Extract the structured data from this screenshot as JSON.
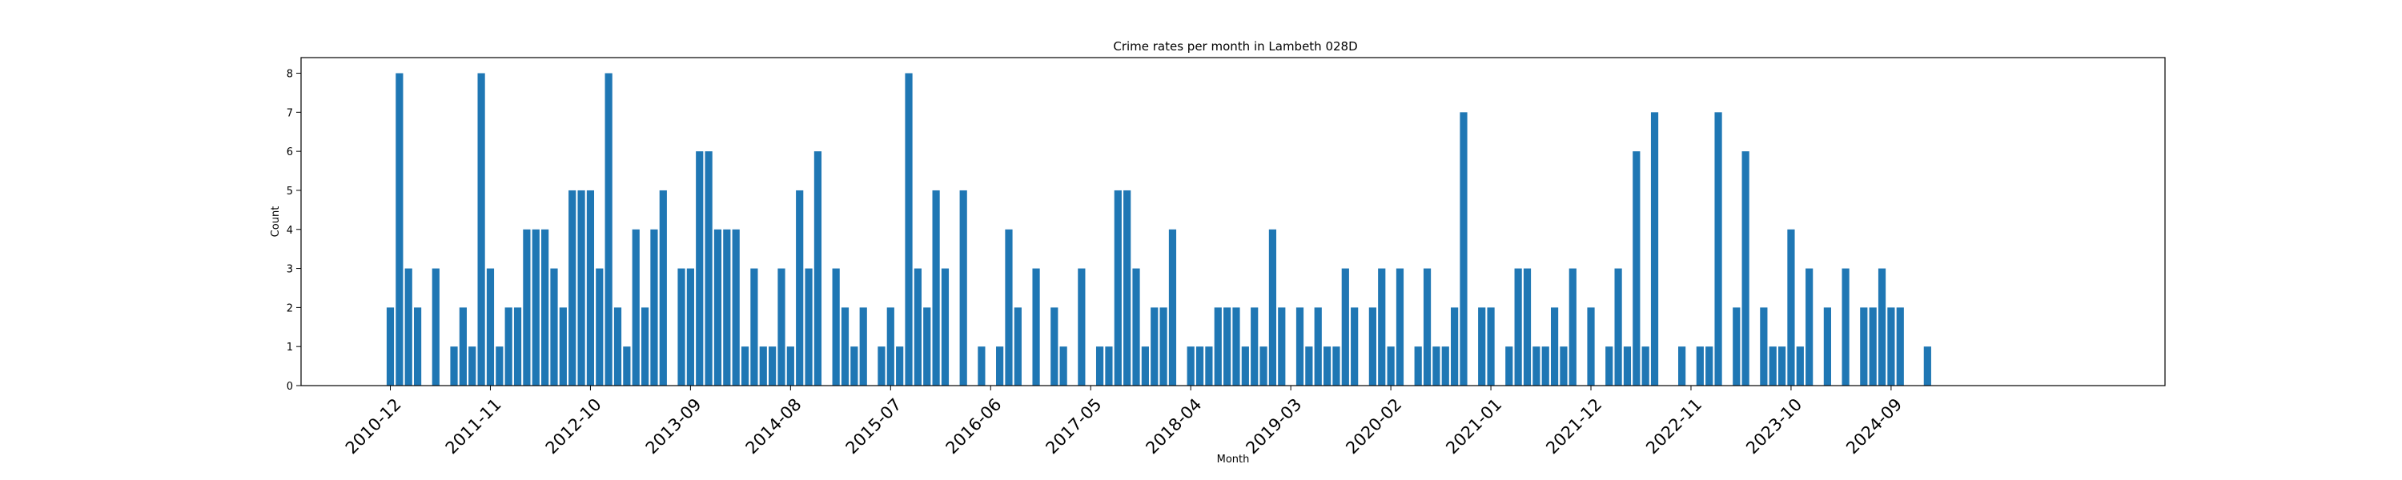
{
  "chart_data": {
    "type": "bar",
    "title": "Crime rates per month in Lambeth 028D",
    "xlabel": "Month",
    "ylabel": "Count",
    "ylim": [
      0,
      8.4
    ],
    "yticks": [
      0,
      1,
      2,
      3,
      4,
      5,
      6,
      7,
      8
    ],
    "bar_color": "#1f77b4",
    "grid": false,
    "start_month": "2010-12",
    "xtick_labels": [
      "2010-12",
      "2011-11",
      "2012-10",
      "2013-09",
      "2014-08",
      "2015-07",
      "2016-06",
      "2017-05",
      "2018-04",
      "2019-03",
      "2020-02",
      "2021-01",
      "2021-12",
      "2022-11",
      "2023-10",
      "2024-09"
    ],
    "values": [
      2,
      8,
      3,
      2,
      0,
      3,
      0,
      1,
      2,
      1,
      8,
      3,
      1,
      2,
      2,
      4,
      4,
      4,
      3,
      2,
      5,
      5,
      5,
      3,
      8,
      2,
      1,
      4,
      2,
      4,
      5,
      0,
      3,
      3,
      6,
      6,
      4,
      4,
      4,
      1,
      3,
      1,
      1,
      3,
      1,
      5,
      3,
      6,
      0,
      3,
      2,
      1,
      2,
      0,
      1,
      2,
      1,
      8,
      3,
      2,
      5,
      3,
      0,
      5,
      0,
      1,
      0,
      1,
      4,
      2,
      0,
      3,
      0,
      2,
      1,
      0,
      3,
      0,
      1,
      1,
      5,
      5,
      3,
      1,
      2,
      2,
      4,
      0,
      1,
      1,
      1,
      2,
      2,
      2,
      1,
      2,
      1,
      4,
      2,
      0,
      2,
      1,
      2,
      1,
      1,
      3,
      2,
      0,
      2,
      3,
      1,
      3,
      0,
      1,
      3,
      1,
      1,
      2,
      7,
      0,
      2,
      2,
      0,
      1,
      3,
      3,
      1,
      1,
      2,
      1,
      3,
      0,
      2,
      0,
      1,
      3,
      1,
      6,
      1,
      7,
      0,
      0,
      1,
      0,
      1,
      1,
      7,
      0,
      2,
      6,
      0,
      2,
      1,
      1,
      4,
      1,
      3,
      0,
      2,
      0,
      3,
      0,
      2,
      2,
      3,
      2,
      2,
      0,
      0,
      1
    ]
  }
}
